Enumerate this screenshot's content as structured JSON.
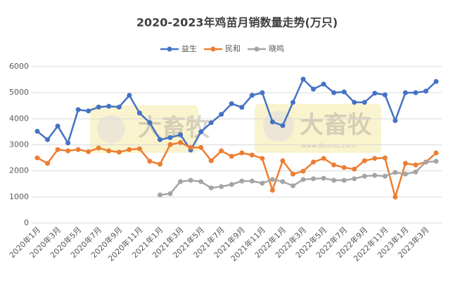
{
  "chart_data": {
    "type": "line",
    "title": "2020-2023年鸡苗月销数量走势(万只)",
    "categories": [
      "2020年1月",
      null,
      "2020年3月",
      null,
      "2020年5月",
      null,
      "2020年7月",
      null,
      "2020年9月",
      null,
      "2020年11月",
      null,
      "2021年1月",
      null,
      "2021年3月",
      null,
      "2021年5月",
      null,
      "2021年7月",
      null,
      "2021年9月",
      null,
      "2021年11月",
      null,
      "2022年1月",
      null,
      "2022年3月",
      null,
      "2022年5月",
      null,
      "2022年7月",
      null,
      "2022年9月",
      null,
      "2022年11月",
      null,
      "2023年1月",
      null,
      "2023年3月",
      null
    ],
    "series": [
      {
        "name": "益生",
        "color": "#4472c4",
        "values": [
          3520,
          3200,
          3720,
          3070,
          4350,
          4300,
          4450,
          4480,
          4450,
          4900,
          4220,
          3850,
          3200,
          3280,
          3390,
          2800,
          3500,
          3850,
          4170,
          4580,
          4440,
          4900,
          5000,
          3880,
          3740,
          4630,
          5520,
          5140,
          5330,
          5000,
          5030,
          4630,
          4630,
          4980,
          4920,
          3930,
          5000,
          5000,
          5060,
          5430
        ]
      },
      {
        "name": "民和",
        "color": "#ed7d31",
        "values": [
          2500,
          2290,
          2820,
          2770,
          2820,
          2740,
          2880,
          2770,
          2720,
          2820,
          2850,
          2370,
          2260,
          3010,
          3090,
          2900,
          2900,
          2390,
          2770,
          2560,
          2690,
          2610,
          2480,
          1260,
          2390,
          1880,
          1990,
          2340,
          2480,
          2230,
          2130,
          2070,
          2390,
          2480,
          2500,
          1000,
          2290,
          2230,
          2340,
          2690
        ]
      },
      {
        "name": "晓鸣",
        "color": "#a5a5a5",
        "values": [
          null,
          null,
          null,
          null,
          null,
          null,
          null,
          null,
          null,
          null,
          null,
          null,
          1080,
          1130,
          1590,
          1640,
          1590,
          1350,
          1400,
          1480,
          1610,
          1610,
          1530,
          1670,
          1590,
          1430,
          1670,
          1700,
          1720,
          1640,
          1640,
          1700,
          1800,
          1830,
          1800,
          1940,
          1880,
          1960,
          2340,
          2370
        ]
      }
    ],
    "ylim": [
      0,
      6000
    ],
    "yticks": [
      0,
      1000,
      2000,
      3000,
      4000,
      5000,
      6000
    ],
    "grid": true,
    "legend": "top",
    "watermark": {
      "text": "大畜牧",
      "url": "www.dxumu.com"
    }
  }
}
